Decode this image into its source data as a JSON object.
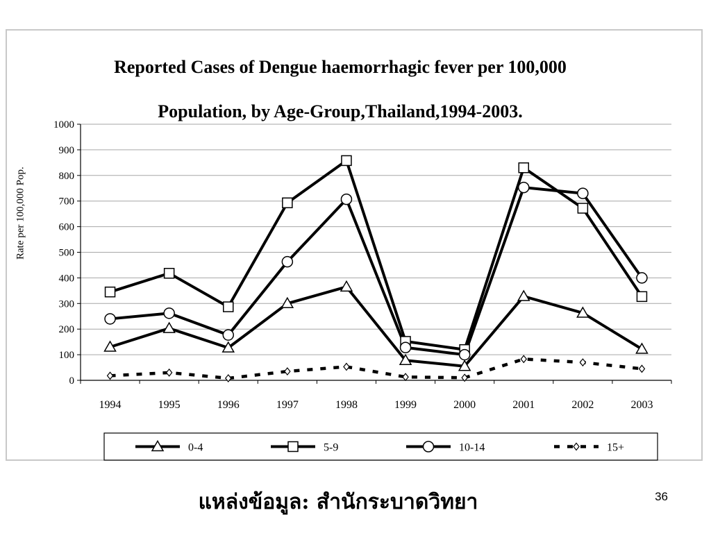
{
  "slide": {
    "source_text": "แหล่งข้อมูล: สำนักระบาดวิทยา",
    "page_number": "36"
  },
  "chart_data": {
    "type": "line",
    "title_line1": "Reported Cases of Dengue haemorrhagic fever per 100,000",
    "title_line2": "Population, by Age-Group,Thailand,1994-2003.",
    "xlabel": "",
    "ylabel": "Rate per 100,000 Pop.",
    "ylim": [
      0,
      1000
    ],
    "yticks": [
      0,
      100,
      200,
      300,
      400,
      500,
      600,
      700,
      800,
      900,
      1000
    ],
    "grid": true,
    "legend_position": "bottom",
    "categories": [
      "1994",
      "1995",
      "1996",
      "1997",
      "1998",
      "1999",
      "2000",
      "2001",
      "2002",
      "2003"
    ],
    "series": [
      {
        "name": "0-4",
        "marker": "triangle",
        "line": "solid",
        "values": [
          130,
          203,
          127,
          300,
          365,
          78,
          55,
          328,
          263,
          122
        ]
      },
      {
        "name": "5-9",
        "marker": "square",
        "line": "solid",
        "values": [
          345,
          418,
          287,
          693,
          858,
          152,
          120,
          830,
          672,
          327
        ]
      },
      {
        "name": "10-14",
        "marker": "circle",
        "line": "solid",
        "values": [
          240,
          262,
          177,
          463,
          707,
          128,
          100,
          753,
          730,
          400
        ]
      },
      {
        "name": "15+",
        "marker": "diamond",
        "line": "dashed",
        "values": [
          18,
          30,
          8,
          35,
          53,
          13,
          10,
          83,
          70,
          45
        ]
      }
    ]
  }
}
